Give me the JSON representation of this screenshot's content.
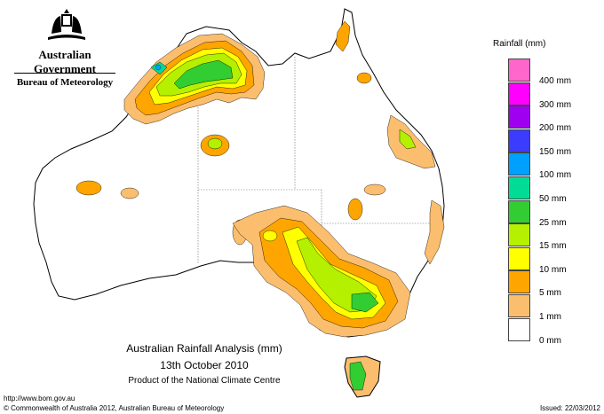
{
  "branding": {
    "government": "Australian Government",
    "agency": "Bureau of Meteorology"
  },
  "map": {
    "title": "Australian Rainfall Analysis (mm)",
    "date": "13th October 2010",
    "product": "Product of the National Climate Centre"
  },
  "legend": {
    "title": "Rainfall (mm)",
    "items": [
      {
        "label": "400 mm",
        "color": "#ff66cc"
      },
      {
        "label": "300 mm",
        "color": "#ff00ff"
      },
      {
        "label": "200 mm",
        "color": "#a000f0"
      },
      {
        "label": "150 mm",
        "color": "#3c3cff"
      },
      {
        "label": "100 mm",
        "color": "#00a0ff"
      },
      {
        "label": "50 mm",
        "color": "#00dc96"
      },
      {
        "label": "25 mm",
        "color": "#32cd32"
      },
      {
        "label": "15 mm",
        "color": "#b4f000"
      },
      {
        "label": "10 mm",
        "color": "#ffff00"
      },
      {
        "label": "5 mm",
        "color": "#ffa500"
      },
      {
        "label": "1 mm",
        "color": "#fbbe6e"
      },
      {
        "label": "0 mm",
        "color": "#ffffff"
      }
    ]
  },
  "footer": {
    "url": "http://www.bom.gov.au",
    "copyright": "© Commonwealth of Australia 2012, Australian Bureau of Meteorology",
    "issued": "Issued: 22/03/2012"
  }
}
